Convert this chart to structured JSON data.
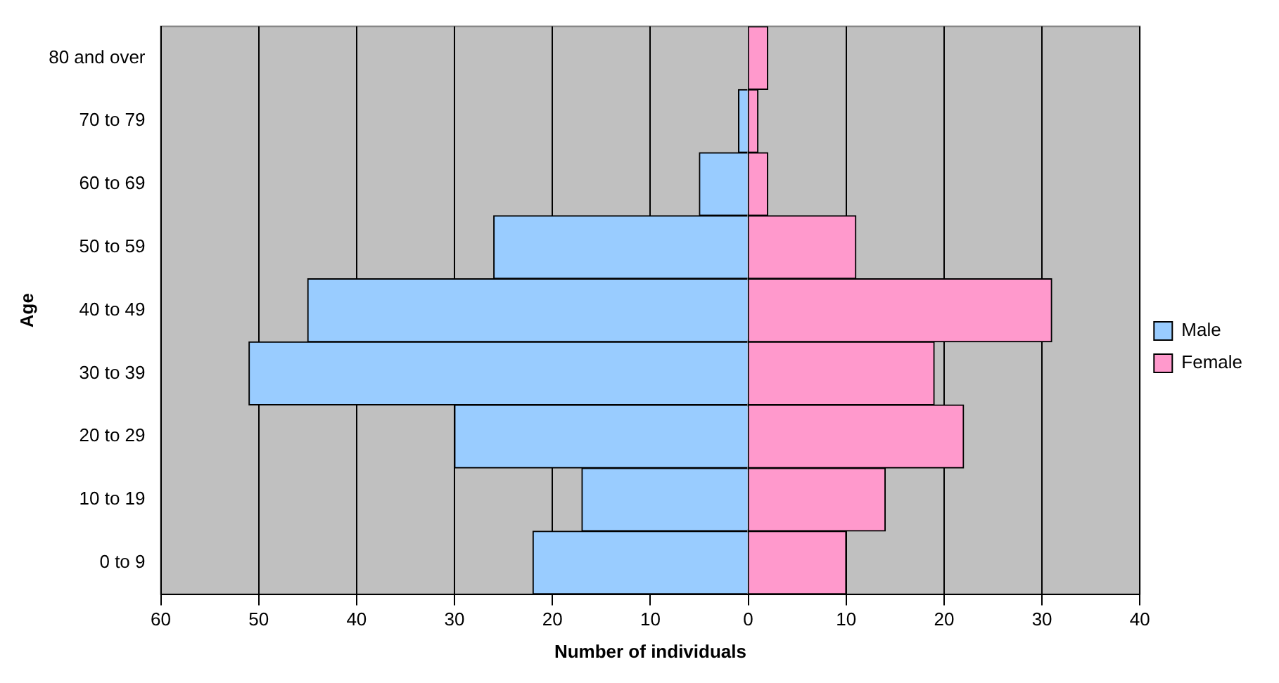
{
  "chart_data": {
    "type": "bar",
    "orientation": "horizontal",
    "stacked": true,
    "xlabel": "Number of individuals",
    "ylabel": "Age",
    "categories": [
      "80 and over",
      "70 to 79",
      "60 to 69",
      "50 to 59",
      "40 to 49",
      "30 to 39",
      "20 to 29",
      "10 to 19",
      "0 to 9"
    ],
    "series": [
      {
        "name": "Male",
        "color": "#99ccff",
        "values": [
          0,
          -1,
          -5,
          -26,
          -45,
          -51,
          -30,
          -17,
          -22
        ]
      },
      {
        "name": "Female",
        "color": "#ff99cc",
        "values": [
          2,
          1,
          2,
          11,
          31,
          19,
          22,
          14,
          10
        ]
      }
    ],
    "xlim": [
      -60,
      40
    ],
    "xticks": [
      {
        "value": -60,
        "label": "60"
      },
      {
        "value": -50,
        "label": "50"
      },
      {
        "value": -40,
        "label": "40"
      },
      {
        "value": -30,
        "label": "30"
      },
      {
        "value": -20,
        "label": "20"
      },
      {
        "value": -10,
        "label": "10"
      },
      0,
      10,
      20,
      30,
      40
    ],
    "grid": "x",
    "legend": "right"
  }
}
